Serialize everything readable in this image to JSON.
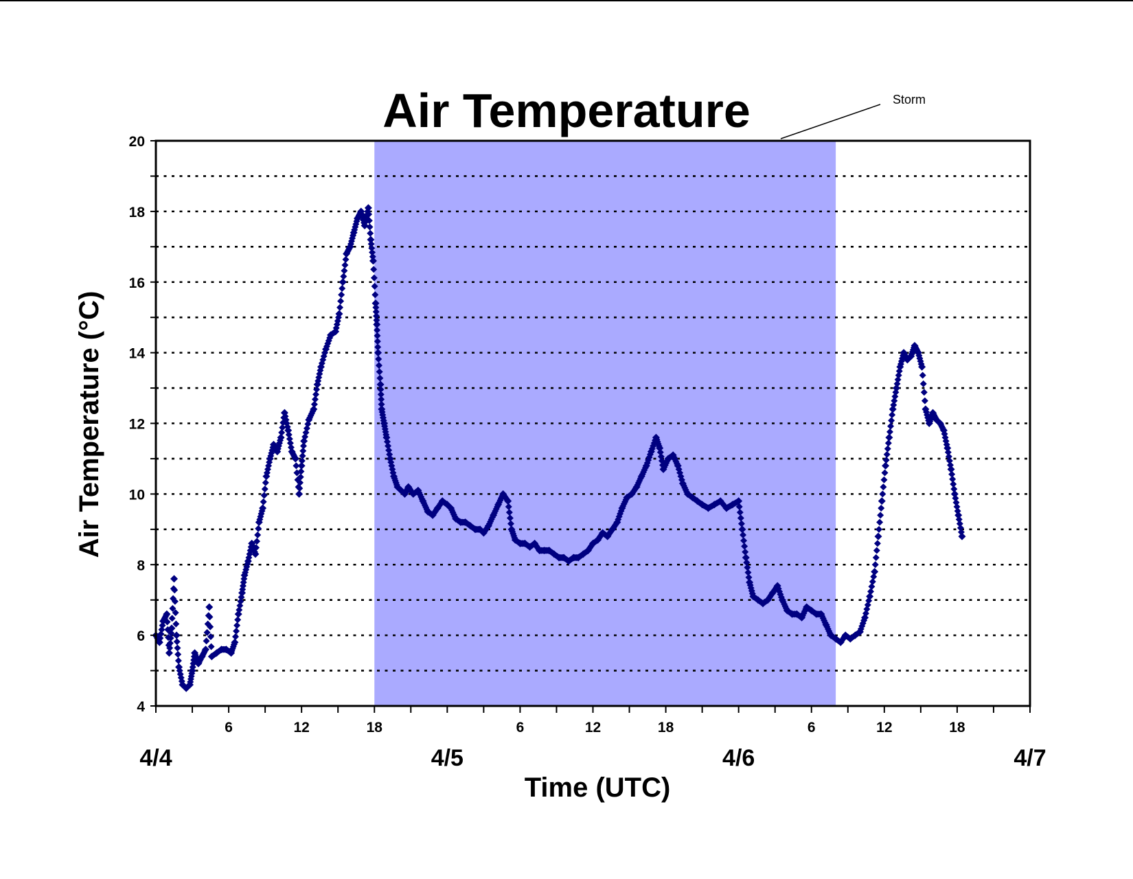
{
  "chart_data": {
    "type": "scatter",
    "title": "Air Temperature",
    "xlabel": "Time (UTC)",
    "ylabel": "Air Temperature (°C)",
    "ylim": [
      4,
      20
    ],
    "yticks": [
      4,
      6,
      8,
      10,
      12,
      14,
      16,
      18,
      20
    ],
    "xlim_hours": [
      0,
      72
    ],
    "x_hour_ticks": [
      {
        "h": 6,
        "label": "6"
      },
      {
        "h": 12,
        "label": "12"
      },
      {
        "h": 18,
        "label": "18"
      },
      {
        "h": 30,
        "label": "6"
      },
      {
        "h": 36,
        "label": "12"
      },
      {
        "h": 42,
        "label": "18"
      },
      {
        "h": 54,
        "label": "6"
      },
      {
        "h": 60,
        "label": "12"
      },
      {
        "h": 66,
        "label": "18"
      }
    ],
    "x_day_labels": [
      {
        "h": 0,
        "label": "4/4"
      },
      {
        "h": 24,
        "label": "4/5"
      },
      {
        "h": 48,
        "label": "4/6"
      },
      {
        "h": 72,
        "label": "4/7"
      }
    ],
    "grid": "horizontal dotted lines at every 1 °C",
    "shaded_region": {
      "label": "Storm",
      "start_hour": 18,
      "end_hour": 56,
      "color": "#aaaaff"
    },
    "marker_color": "#000080",
    "series": [
      {
        "values_hour_temp": [
          [
            0.0,
            6.0
          ],
          [
            0.3,
            5.8
          ],
          [
            0.6,
            6.4
          ],
          [
            0.9,
            6.6
          ],
          [
            1.1,
            5.5
          ],
          [
            1.3,
            6.2
          ],
          [
            1.5,
            7.6
          ],
          [
            1.7,
            6.0
          ],
          [
            1.9,
            5.1
          ],
          [
            2.2,
            4.6
          ],
          [
            2.5,
            4.5
          ],
          [
            2.8,
            4.6
          ],
          [
            3.0,
            5.0
          ],
          [
            3.2,
            5.5
          ],
          [
            3.5,
            5.2
          ],
          [
            3.8,
            5.4
          ],
          [
            4.1,
            5.6
          ],
          [
            4.4,
            6.8
          ],
          [
            4.6,
            5.4
          ],
          [
            5.0,
            5.5
          ],
          [
            5.4,
            5.6
          ],
          [
            5.8,
            5.6
          ],
          [
            6.2,
            5.5
          ],
          [
            6.5,
            5.8
          ],
          [
            6.8,
            6.6
          ],
          [
            7.1,
            7.2
          ],
          [
            7.3,
            7.7
          ],
          [
            7.6,
            8.1
          ],
          [
            7.9,
            8.6
          ],
          [
            8.2,
            8.3
          ],
          [
            8.5,
            9.2
          ],
          [
            8.8,
            9.6
          ],
          [
            9.1,
            10.5
          ],
          [
            9.4,
            11.0
          ],
          [
            9.7,
            11.4
          ],
          [
            10.0,
            11.2
          ],
          [
            10.3,
            11.6
          ],
          [
            10.6,
            12.3
          ],
          [
            10.9,
            11.8
          ],
          [
            11.2,
            11.2
          ],
          [
            11.5,
            11.0
          ],
          [
            11.8,
            10.0
          ],
          [
            12.0,
            10.8
          ],
          [
            12.2,
            11.5
          ],
          [
            12.6,
            12.1
          ],
          [
            13.0,
            12.4
          ],
          [
            13.3,
            13.1
          ],
          [
            13.6,
            13.6
          ],
          [
            14.0,
            14.1
          ],
          [
            14.4,
            14.5
          ],
          [
            14.8,
            14.6
          ],
          [
            15.1,
            15.1
          ],
          [
            15.4,
            16.0
          ],
          [
            15.7,
            16.8
          ],
          [
            16.0,
            17.0
          ],
          [
            16.3,
            17.4
          ],
          [
            16.6,
            17.8
          ],
          [
            16.9,
            18.0
          ],
          [
            17.2,
            17.6
          ],
          [
            17.5,
            18.1
          ],
          [
            17.7,
            17.2
          ],
          [
            17.9,
            16.6
          ],
          [
            18.1,
            15.4
          ],
          [
            18.2,
            14.8
          ],
          [
            18.3,
            14.0
          ],
          [
            18.5,
            13.1
          ],
          [
            18.6,
            12.4
          ],
          [
            18.8,
            12.0
          ],
          [
            19.0,
            11.6
          ],
          [
            19.3,
            11.0
          ],
          [
            19.6,
            10.5
          ],
          [
            19.9,
            10.2
          ],
          [
            20.2,
            10.1
          ],
          [
            20.5,
            10.0
          ],
          [
            20.8,
            10.2
          ],
          [
            21.2,
            10.0
          ],
          [
            21.6,
            10.1
          ],
          [
            22.0,
            9.8
          ],
          [
            22.4,
            9.5
          ],
          [
            22.8,
            9.4
          ],
          [
            23.2,
            9.6
          ],
          [
            23.6,
            9.8
          ],
          [
            24.0,
            9.7
          ],
          [
            24.3,
            9.6
          ],
          [
            24.7,
            9.3
          ],
          [
            25.1,
            9.2
          ],
          [
            25.5,
            9.2
          ],
          [
            25.9,
            9.1
          ],
          [
            26.3,
            9.0
          ],
          [
            26.7,
            9.0
          ],
          [
            27.0,
            8.9
          ],
          [
            27.4,
            9.1
          ],
          [
            27.8,
            9.4
          ],
          [
            28.2,
            9.7
          ],
          [
            28.6,
            10.0
          ],
          [
            29.0,
            9.8
          ],
          [
            29.3,
            9.0
          ],
          [
            29.6,
            8.7
          ],
          [
            30.0,
            8.6
          ],
          [
            30.4,
            8.6
          ],
          [
            30.8,
            8.5
          ],
          [
            31.2,
            8.6
          ],
          [
            31.6,
            8.4
          ],
          [
            32.0,
            8.4
          ],
          [
            32.4,
            8.4
          ],
          [
            32.8,
            8.3
          ],
          [
            33.2,
            8.2
          ],
          [
            33.6,
            8.2
          ],
          [
            34.0,
            8.1
          ],
          [
            34.4,
            8.2
          ],
          [
            34.8,
            8.2
          ],
          [
            35.2,
            8.3
          ],
          [
            35.6,
            8.4
          ],
          [
            36.0,
            8.6
          ],
          [
            36.4,
            8.7
          ],
          [
            36.8,
            8.9
          ],
          [
            37.2,
            8.8
          ],
          [
            37.6,
            9.0
          ],
          [
            38.0,
            9.2
          ],
          [
            38.4,
            9.6
          ],
          [
            38.8,
            9.9
          ],
          [
            39.2,
            10.0
          ],
          [
            39.6,
            10.2
          ],
          [
            40.0,
            10.5
          ],
          [
            40.4,
            10.8
          ],
          [
            40.8,
            11.2
          ],
          [
            41.2,
            11.6
          ],
          [
            41.5,
            11.3
          ],
          [
            41.8,
            10.7
          ],
          [
            42.2,
            11.0
          ],
          [
            42.6,
            11.1
          ],
          [
            43.0,
            10.8
          ],
          [
            43.4,
            10.3
          ],
          [
            43.8,
            10.0
          ],
          [
            44.2,
            9.9
          ],
          [
            44.6,
            9.8
          ],
          [
            45.0,
            9.7
          ],
          [
            45.5,
            9.6
          ],
          [
            46.0,
            9.7
          ],
          [
            46.5,
            9.8
          ],
          [
            47.0,
            9.6
          ],
          [
            47.5,
            9.7
          ],
          [
            48.0,
            9.8
          ],
          [
            48.3,
            9.0
          ],
          [
            48.6,
            8.2
          ],
          [
            48.9,
            7.5
          ],
          [
            49.2,
            7.1
          ],
          [
            49.6,
            7.0
          ],
          [
            50.0,
            6.9
          ],
          [
            50.4,
            7.0
          ],
          [
            50.8,
            7.2
          ],
          [
            51.2,
            7.4
          ],
          [
            51.6,
            7.0
          ],
          [
            52.0,
            6.7
          ],
          [
            52.4,
            6.6
          ],
          [
            52.8,
            6.6
          ],
          [
            53.2,
            6.5
          ],
          [
            53.6,
            6.8
          ],
          [
            54.0,
            6.7
          ],
          [
            54.4,
            6.6
          ],
          [
            54.8,
            6.6
          ],
          [
            55.2,
            6.3
          ],
          [
            55.6,
            6.0
          ],
          [
            56.0,
            5.9
          ],
          [
            56.4,
            5.8
          ],
          [
            56.8,
            6.0
          ],
          [
            57.2,
            5.9
          ],
          [
            57.6,
            6.0
          ],
          [
            58.0,
            6.1
          ],
          [
            58.4,
            6.5
          ],
          [
            58.8,
            7.1
          ],
          [
            59.2,
            7.8
          ],
          [
            59.5,
            8.8
          ],
          [
            59.8,
            9.8
          ],
          [
            60.1,
            10.8
          ],
          [
            60.4,
            11.6
          ],
          [
            60.7,
            12.4
          ],
          [
            61.0,
            13.0
          ],
          [
            61.3,
            13.6
          ],
          [
            61.6,
            14.0
          ],
          [
            61.9,
            13.8
          ],
          [
            62.2,
            13.9
          ],
          [
            62.5,
            14.2
          ],
          [
            62.8,
            14.0
          ],
          [
            63.1,
            13.6
          ],
          [
            63.4,
            12.4
          ],
          [
            63.7,
            12.0
          ],
          [
            64.0,
            12.3
          ],
          [
            64.3,
            12.1
          ],
          [
            64.6,
            12.0
          ],
          [
            64.9,
            11.8
          ],
          [
            65.2,
            11.3
          ],
          [
            65.5,
            10.7
          ],
          [
            65.8,
            10.0
          ],
          [
            66.1,
            9.4
          ],
          [
            66.4,
            8.8
          ]
        ]
      }
    ]
  }
}
